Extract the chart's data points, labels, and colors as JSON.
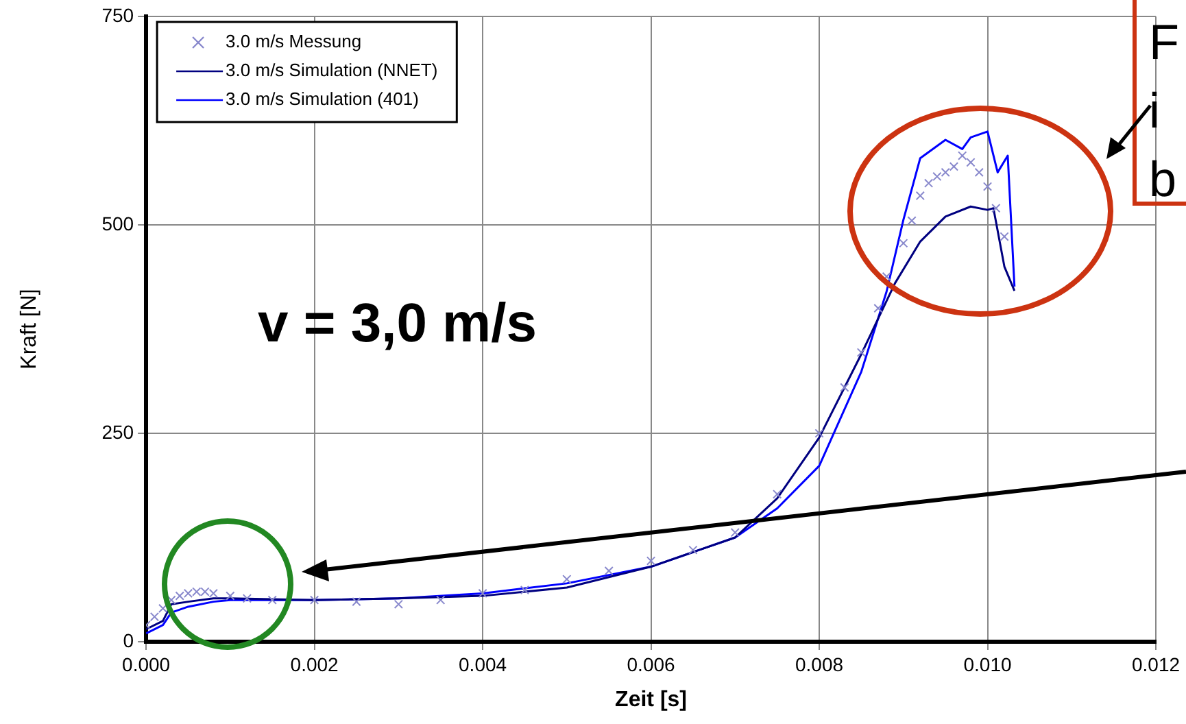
{
  "chart_data": {
    "type": "line",
    "xlabel": "Zeit [s]",
    "ylabel": "Kraft [N]",
    "xlim": [
      0,
      0.012
    ],
    "ylim": [
      0,
      750
    ],
    "xticks": [
      {
        "value": 0,
        "label": "0.000"
      },
      {
        "value": 0.002,
        "label": "0.002"
      },
      {
        "value": 0.004,
        "label": "0.004"
      },
      {
        "value": 0.006,
        "label": "0.006"
      },
      {
        "value": 0.008,
        "label": "0.008"
      },
      {
        "value": 0.01,
        "label": "0.010"
      },
      {
        "value": 0.012,
        "label": "0.012"
      }
    ],
    "yticks": [
      0,
      250,
      500,
      750
    ],
    "grid": true,
    "legend": "top left",
    "series": [
      {
        "name": "3.0 m/s Messung",
        "type": "scatter",
        "marker": "cross",
        "color": "#8888cc",
        "x": [
          0,
          0.0001,
          0.0002,
          0.0003,
          0.0004,
          0.0005,
          0.0006,
          0.0007,
          0.0008,
          0.001,
          0.0012,
          0.0015,
          0.002,
          0.0025,
          0.003,
          0.0035,
          0.004,
          0.0045,
          0.005,
          0.0055,
          0.006,
          0.0065,
          0.007,
          0.0075,
          0.008,
          0.0083,
          0.0085,
          0.0087,
          0.0088,
          0.009,
          0.0091,
          0.0092,
          0.0093,
          0.0094,
          0.0095,
          0.0096,
          0.0097,
          0.0098,
          0.0099,
          0.01,
          0.0101,
          0.0102
        ],
        "values": [
          20,
          30,
          40,
          50,
          55,
          58,
          60,
          60,
          58,
          55,
          52,
          50,
          50,
          48,
          45,
          50,
          58,
          62,
          75,
          85,
          97,
          110,
          131,
          177,
          250,
          305,
          347,
          400,
          438,
          478,
          505,
          535,
          550,
          558,
          563,
          570,
          583,
          575,
          563,
          546,
          520,
          486
        ]
      },
      {
        "name": "3.0 m/s Simulation (NNET)",
        "type": "line",
        "marker": "none",
        "color": "#000080",
        "x": [
          0,
          0.0002,
          0.0003,
          0.0005,
          0.0008,
          0.001,
          0.002,
          0.003,
          0.004,
          0.005,
          0.006,
          0.007,
          0.0075,
          0.008,
          0.0085,
          0.0089,
          0.0092,
          0.0095,
          0.0098,
          0.01,
          0.01007,
          0.0102,
          0.01032
        ],
        "values": [
          15,
          25,
          45,
          48,
          52,
          52,
          50,
          52,
          55,
          65,
          90,
          125,
          172,
          245,
          345,
          430,
          480,
          510,
          522,
          518,
          520,
          450,
          421
        ]
      },
      {
        "name": "3.0 m/s Simulation (401)",
        "type": "line",
        "marker": "none",
        "color": "#0000ff",
        "x": [
          0,
          0.0002,
          0.0003,
          0.0005,
          0.0008,
          0.001,
          0.002,
          0.003,
          0.004,
          0.005,
          0.006,
          0.007,
          0.0075,
          0.008,
          0.0085,
          0.0088,
          0.009,
          0.0092,
          0.0095,
          0.0097,
          0.0098,
          0.01,
          0.01012,
          0.01024,
          0.01032
        ],
        "values": [
          10,
          20,
          35,
          42,
          48,
          50,
          50,
          52,
          58,
          70,
          90,
          125,
          160,
          211,
          324,
          420,
          506,
          580,
          602,
          591,
          605,
          612,
          563,
          583,
          426
        ]
      }
    ],
    "annotations": [
      "v = 3,0 m/s",
      "F",
      "i",
      "b"
    ]
  }
}
